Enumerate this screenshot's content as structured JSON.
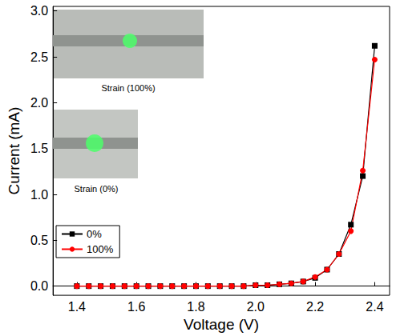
{
  "chart_data": {
    "type": "line",
    "x_label": "Voltage (V)",
    "y_label": "Current (mA)",
    "xlim": [
      1.32,
      2.45
    ],
    "xticks": [
      1.4,
      1.6,
      1.8,
      {
        "value": 2,
        "label": "2.0"
      },
      2.2,
      2.4
    ],
    "ylim": [
      -0.1,
      3.05
    ],
    "yticks": [
      {
        "value": 0,
        "label": "0.0"
      },
      0.5,
      {
        "value": 1,
        "label": "1.0"
      },
      1.5,
      {
        "value": 2,
        "label": "2.0"
      },
      2.5,
      {
        "value": 3,
        "label": "3.0"
      }
    ],
    "grid": false,
    "legend": "lower-left",
    "x": [
      1.4,
      1.44,
      1.48,
      1.52,
      1.56,
      1.6,
      1.64,
      1.68,
      1.72,
      1.76,
      1.8,
      1.84,
      1.88,
      1.92,
      1.96,
      2.0,
      2.04,
      2.08,
      2.12,
      2.16,
      2.2,
      2.24,
      2.28,
      2.32,
      2.36,
      2.4
    ],
    "series": [
      {
        "name": "0%",
        "color": "#000000",
        "marker": "square",
        "line_style": "solid",
        "values": [
          0,
          0,
          0,
          0,
          0,
          0,
          0,
          0,
          0,
          0,
          0,
          0,
          0,
          0,
          0,
          0.01,
          0.01,
          0.02,
          0.03,
          0.05,
          0.09,
          0.18,
          0.35,
          0.67,
          1.2,
          2.62
        ]
      },
      {
        "name": "100%",
        "color": "#ff0000",
        "marker": "circle",
        "line_style": "solid",
        "values": [
          0,
          0,
          0,
          0,
          0,
          0,
          0,
          0,
          0,
          0,
          0,
          0,
          0,
          0,
          0,
          0.01,
          0.01,
          0.02,
          0.03,
          0.05,
          0.1,
          0.18,
          0.35,
          0.6,
          1.26,
          2.47
        ]
      }
    ],
    "annotations": [
      "Strain (100%)",
      "Strain (0%)"
    ]
  }
}
